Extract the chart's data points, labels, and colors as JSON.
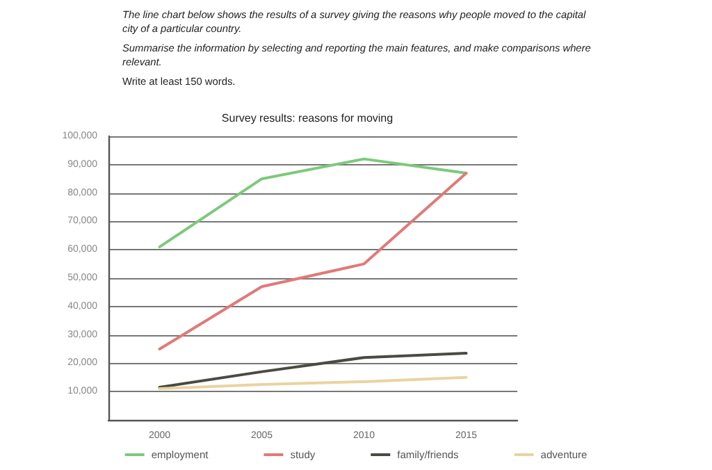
{
  "chart_data": {
    "type": "line",
    "title": "Survey results: reasons for moving",
    "annotations": [
      "The line chart below shows the results of a survey giving the reasons why people moved to the capital city of a particular country.",
      "Summarise the information by selecting and reporting the main features, and make comparisons where relevant.",
      "Write at least 150 words."
    ],
    "categories": [
      "2000",
      "2005",
      "2010",
      "2015"
    ],
    "series": [
      {
        "name": "employment",
        "color": "#7dc97b",
        "values": [
          61000,
          85000,
          92000,
          87000
        ]
      },
      {
        "name": "study",
        "color": "#e07a78",
        "values": [
          25000,
          47000,
          55000,
          87000
        ]
      },
      {
        "name": "family/friends",
        "color": "#4a4a44",
        "values": [
          11500,
          17000,
          22000,
          23500
        ]
      },
      {
        "name": "adventure",
        "color": "#ead3a0",
        "values": [
          11000,
          12500,
          13500,
          15000
        ]
      }
    ],
    "ylim": [
      0,
      100000
    ],
    "yticks": [
      {
        "value": 0,
        "label": null
      },
      {
        "value": 10000,
        "label": "10,000"
      },
      {
        "value": 20000,
        "label": "20,000"
      },
      {
        "value": 30000,
        "label": "30,000"
      },
      {
        "value": 40000,
        "label": "40,000"
      },
      {
        "value": 50000,
        "label": "50,000"
      },
      {
        "value": 60000,
        "label": "60,000"
      },
      {
        "value": 70000,
        "label": "70,000"
      },
      {
        "value": 80000,
        "label": "80,000"
      },
      {
        "value": 90000,
        "label": "90,000"
      },
      {
        "value": 100000,
        "label": "100,000"
      }
    ],
    "grid": "y",
    "legend": "bottom",
    "marker": "none",
    "line_style": "solid"
  }
}
